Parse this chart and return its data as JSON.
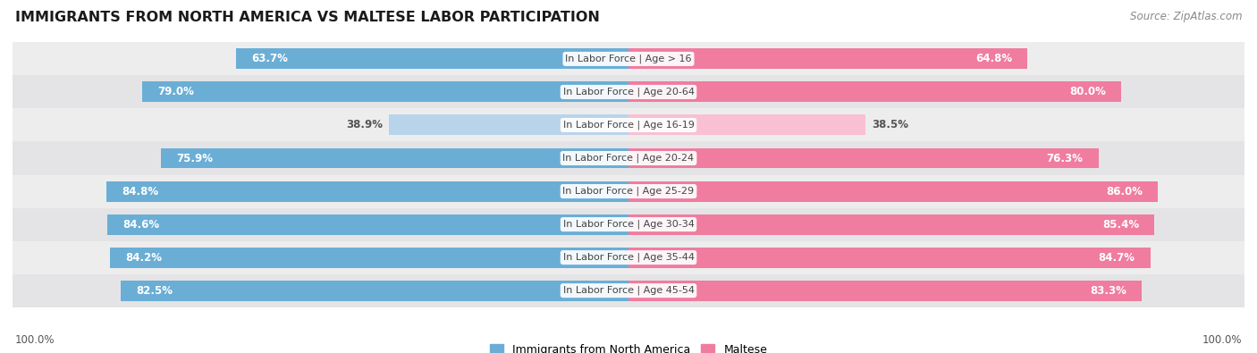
{
  "title": "IMMIGRANTS FROM NORTH AMERICA VS MALTESE LABOR PARTICIPATION",
  "source": "Source: ZipAtlas.com",
  "categories": [
    "In Labor Force | Age > 16",
    "In Labor Force | Age 20-64",
    "In Labor Force | Age 16-19",
    "In Labor Force | Age 20-24",
    "In Labor Force | Age 25-29",
    "In Labor Force | Age 30-34",
    "In Labor Force | Age 35-44",
    "In Labor Force | Age 45-54"
  ],
  "left_values": [
    63.7,
    79.0,
    38.9,
    75.9,
    84.8,
    84.6,
    84.2,
    82.5
  ],
  "right_values": [
    64.8,
    80.0,
    38.5,
    76.3,
    86.0,
    85.4,
    84.7,
    83.3
  ],
  "left_color": "#6aaed6",
  "right_color": "#f07ca0",
  "left_color_light": "#b8d4ea",
  "right_color_light": "#f9c0d4",
  "label_left": "Immigrants from North America",
  "label_right": "Maltese",
  "bar_height": 0.62,
  "row_bg_even": "#ededee",
  "row_bg_odd": "#e4e4e6",
  "max_value": 100.0,
  "bg_color": "#ffffff",
  "title_fontsize": 11.5,
  "source_fontsize": 8.5,
  "bar_label_fontsize": 8.5,
  "category_fontsize": 8.0,
  "footer_label_fontsize": 8.5,
  "light_threshold": 50.0
}
